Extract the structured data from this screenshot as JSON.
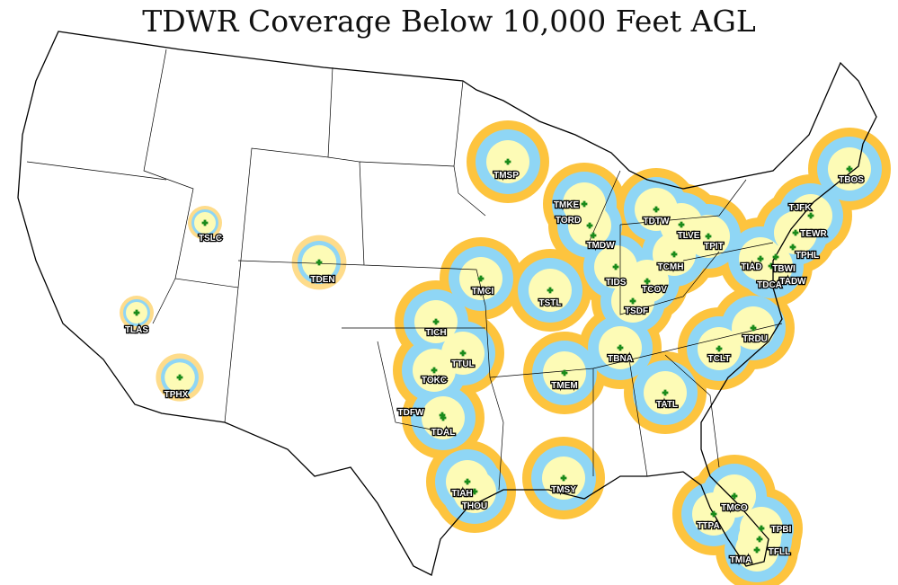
{
  "title": "TDWR Coverage Below 10,000 Feet AGL",
  "colors": {
    "outer_ring": "#fdc43e",
    "middle_ring": "#8fd6f5",
    "inner_core": "#fdfbb6",
    "site_marker": "#1a8a1a",
    "borders": "#000000"
  },
  "legend": null,
  "sites": [
    "TMSP",
    "TMKE",
    "TORD",
    "TMDW",
    "TDTW",
    "TLVE",
    "TPIT",
    "TIDS",
    "TCMH",
    "TCOV",
    "TSDF",
    "TIAD",
    "TDCA",
    "TBWI",
    "TADW",
    "TPHL",
    "TEWR",
    "TJFK",
    "TBOS",
    "TMCI",
    "TSTL",
    "TICH",
    "TTUL",
    "TOKC",
    "TDFW",
    "TDAL",
    "TIAH",
    "THOU",
    "TMSY",
    "TMEM",
    "TBNA",
    "TATL",
    "TCLT",
    "TRDU",
    "TMCO",
    "TTPA",
    "TPBI",
    "TFLL",
    "TMIA",
    "TDEN",
    "TSLC",
    "TLAS",
    "TPHX"
  ]
}
